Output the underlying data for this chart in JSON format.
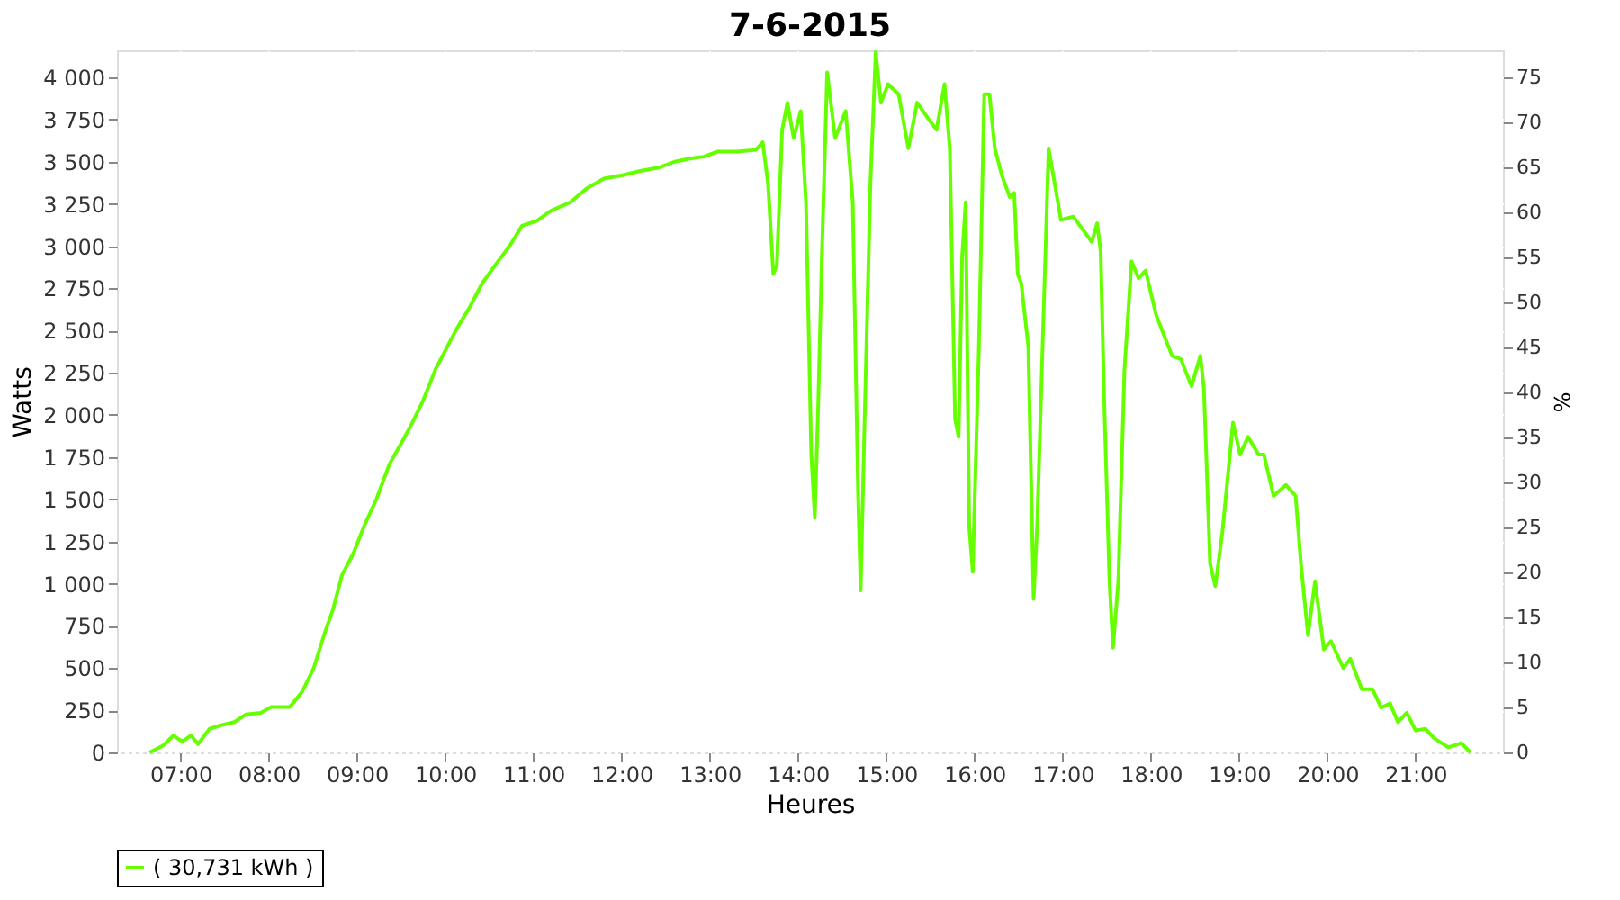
{
  "chart_data": {
    "type": "line",
    "title": "7-6-2015",
    "xlabel": "Heures",
    "ylabel": "Watts",
    "y2label": "%",
    "x": [
      6.65,
      6.8,
      6.92,
      7.02,
      7.12,
      7.2,
      7.33,
      7.45,
      7.61,
      7.74,
      7.91,
      8.03,
      8.24,
      8.38,
      8.51,
      8.63,
      8.73,
      8.83,
      8.96,
      9.08,
      9.22,
      9.37,
      9.49,
      9.6,
      9.75,
      9.89,
      10.01,
      10.13,
      10.28,
      10.42,
      10.57,
      10.73,
      10.87,
      11.04,
      11.2,
      11.42,
      11.6,
      11.8,
      12.01,
      12.21,
      12.42,
      12.6,
      12.79,
      12.93,
      13.09,
      13.31,
      13.52,
      13.6,
      13.66,
      13.72,
      13.76,
      13.82,
      13.88,
      13.95,
      14.03,
      14.09,
      14.15,
      14.19,
      14.23,
      14.27,
      14.33,
      14.42,
      14.54,
      14.62,
      14.68,
      14.71,
      14.75,
      14.82,
      14.88,
      14.94,
      15.02,
      15.14,
      15.25,
      15.35,
      15.49,
      15.57,
      15.66,
      15.72,
      15.78,
      15.82,
      15.86,
      15.9,
      15.94,
      15.98,
      16.05,
      16.11,
      16.17,
      16.23,
      16.31,
      16.4,
      16.45,
      16.49,
      16.53,
      16.61,
      16.67,
      16.71,
      16.84,
      16.98,
      17.12,
      17.33,
      17.39,
      17.43,
      17.47,
      17.53,
      17.57,
      17.63,
      17.7,
      17.78,
      17.86,
      17.94,
      18.06,
      18.24,
      18.34,
      18.46,
      18.56,
      18.6,
      18.67,
      18.73,
      18.81,
      18.93,
      19.01,
      19.1,
      19.22,
      19.28,
      19.39,
      19.53,
      19.64,
      19.7,
      19.78,
      19.86,
      19.96,
      20.04,
      20.18,
      20.26,
      20.39,
      20.51,
      20.61,
      20.71,
      20.8,
      20.9,
      21.0,
      21.11,
      21.21,
      21.37,
      21.52,
      21.62
    ],
    "series": [
      {
        "name": "( 30,731 kWh )",
        "color": "#66ff00",
        "values": [
          0,
          40,
          100,
          65,
          100,
          50,
          140,
          160,
          180,
          225,
          235,
          270,
          270,
          360,
          500,
          700,
          850,
          1050,
          1180,
          1340,
          1500,
          1710,
          1820,
          1925,
          2085,
          2270,
          2390,
          2510,
          2640,
          2780,
          2890,
          3000,
          3120,
          3150,
          3210,
          3260,
          3340,
          3400,
          3420,
          3445,
          3465,
          3500,
          3520,
          3530,
          3560,
          3560,
          3570,
          3615,
          3370,
          2835,
          2890,
          3690,
          3850,
          3640,
          3800,
          3260,
          1765,
          1390,
          2085,
          2940,
          4030,
          3640,
          3800,
          3260,
          1550,
          960,
          1870,
          3370,
          4150,
          3850,
          3960,
          3900,
          3580,
          3850,
          3745,
          3690,
          3960,
          3580,
          1975,
          1870,
          2940,
          3260,
          1340,
          1070,
          2405,
          3900,
          3900,
          3580,
          3420,
          3290,
          3315,
          2835,
          2780,
          2405,
          910,
          1340,
          3580,
          3155,
          3175,
          3025,
          3135,
          2970,
          2085,
          1015,
          620,
          1015,
          2270,
          2910,
          2810,
          2855,
          2590,
          2350,
          2330,
          2170,
          2350,
          2160,
          1120,
          985,
          1305,
          1955,
          1765,
          1870,
          1765,
          1765,
          1520,
          1585,
          1520,
          1120,
          695,
          1015,
          610,
          660,
          500,
          555,
          375,
          375,
          265,
          290,
          180,
          235,
          130,
          140,
          85,
          30,
          55,
          0
        ]
      }
    ],
    "xlim": [
      6.28,
      21.99
    ],
    "xticks": [
      {
        "value": 7,
        "label": "07:00"
      },
      {
        "value": 8,
        "label": "08:00"
      },
      {
        "value": 9,
        "label": "09:00"
      },
      {
        "value": 10,
        "label": "10:00"
      },
      {
        "value": 11,
        "label": "11:00"
      },
      {
        "value": 12,
        "label": "12:00"
      },
      {
        "value": 13,
        "label": "13:00"
      },
      {
        "value": 14,
        "label": "14:00"
      },
      {
        "value": 15,
        "label": "15:00"
      },
      {
        "value": 16,
        "label": "16:00"
      },
      {
        "value": 17,
        "label": "17:00"
      },
      {
        "value": 18,
        "label": "18:00"
      },
      {
        "value": 19,
        "label": "19:00"
      },
      {
        "value": 20,
        "label": "20:00"
      },
      {
        "value": 21,
        "label": "21:00"
      }
    ],
    "ylim": [
      0,
      4160
    ],
    "yticks": [
      0,
      250,
      500,
      750,
      {
        "value": 1000,
        "label": "1 000"
      },
      {
        "value": 1250,
        "label": "1 250"
      },
      {
        "value": 1500,
        "label": "1 500"
      },
      {
        "value": 1750,
        "label": "1 750"
      },
      {
        "value": 2000,
        "label": "2 000"
      },
      {
        "value": 2250,
        "label": "2 250"
      },
      {
        "value": 2500,
        "label": "2 500"
      },
      {
        "value": 2750,
        "label": "2 750"
      },
      {
        "value": 3000,
        "label": "3 000"
      },
      {
        "value": 3250,
        "label": "3 250"
      },
      {
        "value": 3500,
        "label": "3 500"
      },
      {
        "value": 3750,
        "label": "3 750"
      },
      {
        "value": 4000,
        "label": "4 000"
      }
    ],
    "y2lim": [
      0,
      78
    ],
    "y2ticks": [
      0,
      5,
      10,
      15,
      20,
      25,
      30,
      35,
      40,
      45,
      50,
      55,
      60,
      65,
      70,
      75
    ],
    "grid": true,
    "legend": "bottom",
    "marker": "none",
    "line_style": "solid"
  }
}
